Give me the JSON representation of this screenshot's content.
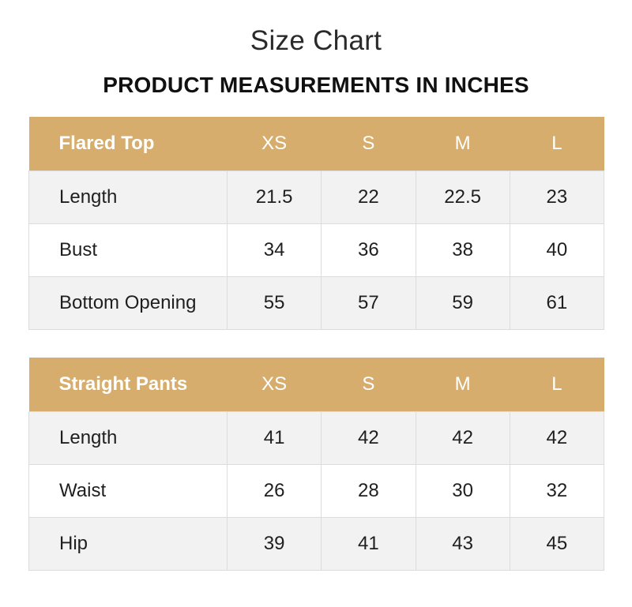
{
  "page": {
    "title": "Size Chart",
    "subtitle": "PRODUCT MEASUREMENTS IN INCHES"
  },
  "colors": {
    "header_bg": "#d6ad6d",
    "header_text": "#ffffff",
    "row_shade": "#f2f2f2",
    "row_plain": "#ffffff",
    "border": "#dcdcdc"
  },
  "tables": [
    {
      "product": "Flared Top",
      "sizes": [
        "XS",
        "S",
        "M",
        "L"
      ],
      "rows": [
        {
          "label": "Length",
          "values": [
            "21.5",
            "22",
            "22.5",
            "23"
          ]
        },
        {
          "label": "Bust",
          "values": [
            "34",
            "36",
            "38",
            "40"
          ]
        },
        {
          "label": "Bottom Opening",
          "values": [
            "55",
            "57",
            "59",
            "61"
          ]
        }
      ]
    },
    {
      "product": "Straight Pants",
      "sizes": [
        "XS",
        "S",
        "M",
        "L"
      ],
      "rows": [
        {
          "label": "Length",
          "values": [
            "41",
            "42",
            "42",
            "42"
          ]
        },
        {
          "label": "Waist",
          "values": [
            "26",
            "28",
            "30",
            "32"
          ]
        },
        {
          "label": "Hip",
          "values": [
            "39",
            "41",
            "43",
            "45"
          ]
        }
      ]
    }
  ]
}
